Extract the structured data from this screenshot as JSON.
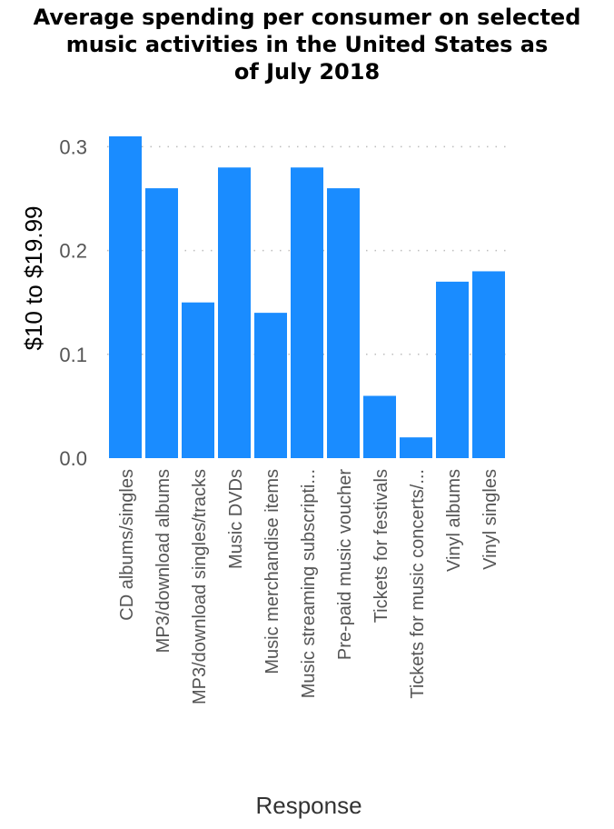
{
  "chart_data": {
    "type": "bar",
    "title_lines": [
      "Average spending per consumer on selected",
      "music activities in the United States as",
      "of July 2018"
    ],
    "xlabel": "Response",
    "ylabel": "$10 to $19.99",
    "ylim": [
      0,
      0.31
    ],
    "yticks": [
      "0.0",
      "0.1",
      "0.2",
      "0.3"
    ],
    "ytick_values": [
      0,
      0.1,
      0.2,
      0.3
    ],
    "grid": "horizontal dotted",
    "bar_color": "#1a8cff",
    "categories": [
      "CD albums/singles",
      "MP3/download albums",
      "MP3/download singles/tracks",
      "Music DVDs",
      "Music merchandise items",
      "Music streaming subscripti...",
      "Pre-paid music voucher",
      "Tickets for festivals",
      "Tickets for music concerts/...",
      "Vinyl albums",
      "Vinyl singles"
    ],
    "values": [
      0.31,
      0.26,
      0.15,
      0.28,
      0.14,
      0.28,
      0.26,
      0.06,
      0.02,
      0.17,
      0.18
    ]
  }
}
